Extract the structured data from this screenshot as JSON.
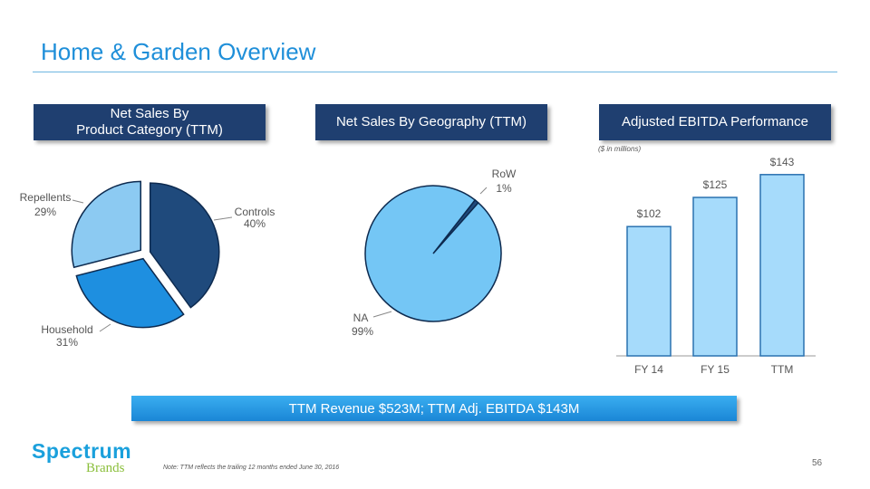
{
  "title": "Home & Garden Overview",
  "headers": {
    "category_line1": "Net Sales By",
    "category_line2": "Product Category (TTM)",
    "geography": "Net Sales By Geography (TTM)",
    "ebitda": "Adjusted EBITDA Performance"
  },
  "units_note": "($ in millions)",
  "banner": "TTM Revenue  $523M; TTM  Adj.  EBITDA $143M",
  "logo": {
    "top": "Spectrum",
    "bottom": "Brands"
  },
  "footnote": "Note: TTM reflects the trailing 12 months  ended June 30, 2016",
  "page_number": "56",
  "chart_data": [
    {
      "type": "pie",
      "title": "Net Sales By Product Category (TTM)",
      "slices": [
        {
          "label": "Controls",
          "pct_label": "40%",
          "value": 40,
          "color": "#1f4a7c"
        },
        {
          "label": "Household",
          "pct_label": "31%",
          "value": 31,
          "color": "#1e8fe0"
        },
        {
          "label": "Repellents",
          "pct_label": "29%",
          "value": 29,
          "color": "#8ccaf2"
        }
      ]
    },
    {
      "type": "pie",
      "title": "Net Sales By Geography (TTM)",
      "slices": [
        {
          "label": "RoW",
          "pct_label": "1%",
          "value": 1,
          "color": "#1f4a7c"
        },
        {
          "label": "NA",
          "pct_label": "99%",
          "value": 99,
          "color": "#74c6f5"
        }
      ]
    },
    {
      "type": "bar",
      "title": "Adjusted EBITDA Performance",
      "categories": [
        "FY 14",
        "FY 15",
        "TTM"
      ],
      "values": [
        102,
        125,
        143
      ],
      "data_labels": [
        "$102",
        "$125",
        "$143"
      ],
      "ylim": [
        0,
        150
      ],
      "color": "#a6dbfb"
    }
  ]
}
